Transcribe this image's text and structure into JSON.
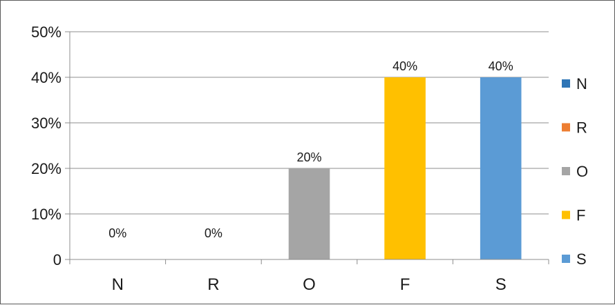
{
  "chart_data": {
    "type": "bar",
    "title": "",
    "xlabel": "",
    "ylabel": "",
    "categories": [
      "N",
      "R",
      "O",
      "F",
      "S"
    ],
    "values": [
      0,
      0,
      20,
      40,
      40
    ],
    "data_labels": [
      "0%",
      "0%",
      "20%",
      "40%",
      "40%"
    ],
    "colors": [
      "#2e75b6",
      "#ed7d31",
      "#a5a5a5",
      "#ffc000",
      "#5b9bd5"
    ],
    "ylim": [
      0,
      50
    ],
    "yticks": [
      0,
      10,
      20,
      30,
      40,
      50
    ],
    "ytick_labels": [
      "0",
      "10%",
      "20%",
      "30%",
      "40%",
      "50%"
    ],
    "grid": true,
    "legend": {
      "placement": "right",
      "entries": [
        "N",
        "R",
        "O",
        "F",
        "S"
      ]
    }
  }
}
